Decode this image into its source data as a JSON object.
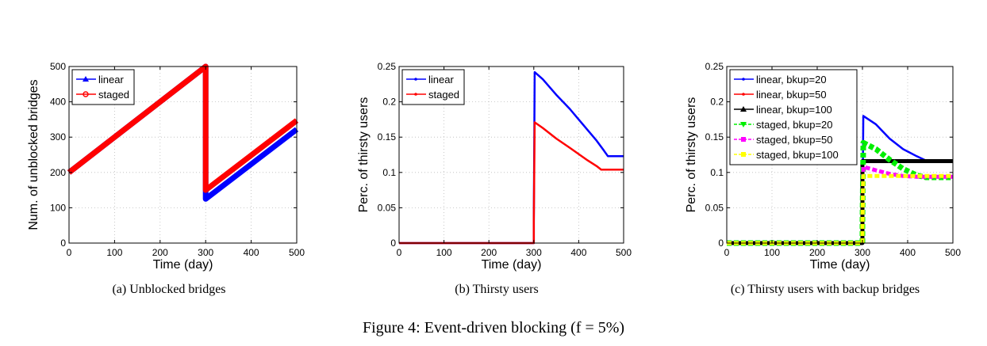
{
  "figure_caption": "Figure 4: Event-driven blocking (f = 5%)",
  "chart_data": [
    {
      "type": "line",
      "caption": "(a) Unblocked bridges",
      "xlabel": "Time (day)",
      "ylabel": "Num. of unblocked bridges",
      "xlim": [
        0,
        500
      ],
      "ylim": [
        0,
        500
      ],
      "xticks": [
        0,
        100,
        200,
        300,
        400,
        500
      ],
      "yticks": [
        0,
        100,
        200,
        300,
        400,
        500
      ],
      "tick_labels_x": [
        "0",
        "100",
        "200",
        "300",
        "400",
        "500"
      ],
      "tick_labels_y": [
        "0",
        "100",
        "200",
        "300",
        "400",
        "500"
      ],
      "grid": true,
      "legend": "top-left",
      "series": [
        {
          "name": "linear",
          "color": "#0000ff",
          "marker": "triangle",
          "lw": 7,
          "dash": "",
          "x": [
            0,
            300,
            300,
            500
          ],
          "y": [
            200,
            500,
            125,
            322
          ]
        },
        {
          "name": "staged",
          "color": "#ff0000",
          "marker": "circle",
          "lw": 7,
          "dash": "",
          "x": [
            0,
            300,
            300,
            500
          ],
          "y": [
            200,
            500,
            150,
            347
          ]
        }
      ],
      "points": [
        {
          "color": "#ff0000",
          "x": 300,
          "y": 368
        }
      ]
    },
    {
      "type": "line",
      "caption": "(b) Thirsty users",
      "xlabel": "Time (day)",
      "ylabel": "Perc. of thirsty users",
      "xlim": [
        0,
        500
      ],
      "ylim": [
        0,
        0.25
      ],
      "xticks": [
        0,
        100,
        200,
        300,
        400,
        500
      ],
      "yticks": [
        0,
        0.05,
        0.1,
        0.15,
        0.2,
        0.25
      ],
      "tick_labels_x": [
        "0",
        "100",
        "200",
        "300",
        "400",
        "500"
      ],
      "tick_labels_y": [
        "0",
        "0.05",
        "0.1",
        "0.15",
        "0.2",
        "0.25"
      ],
      "grid": true,
      "legend": "top-left",
      "series": [
        {
          "name": "linear",
          "color": "#0000ff",
          "marker": "point",
          "lw": 2.5,
          "dash": "",
          "x": [
            0,
            300,
            300,
            302,
            320,
            350,
            380,
            400,
            420,
            440,
            455,
            465,
            500
          ],
          "y": [
            0,
            0,
            0.03,
            0.242,
            0.232,
            0.21,
            0.19,
            0.175,
            0.16,
            0.145,
            0.132,
            0.123,
            0.123
          ]
        },
        {
          "name": "staged",
          "color": "#ff0000",
          "marker": "point",
          "lw": 2.5,
          "dash": "",
          "x": [
            0,
            300,
            300,
            302,
            320,
            350,
            380,
            400,
            420,
            440,
            450,
            500
          ],
          "y": [
            0,
            0,
            0.03,
            0.171,
            0.163,
            0.148,
            0.135,
            0.126,
            0.117,
            0.109,
            0.104,
            0.104
          ]
        }
      ],
      "points": []
    },
    {
      "type": "line",
      "caption": "(c) Thirsty users with backup bridges",
      "xlabel": "Time (day)",
      "ylabel": "Perc. of thirsty users",
      "xlim": [
        0,
        500
      ],
      "ylim": [
        0,
        0.25
      ],
      "xticks": [
        0,
        100,
        200,
        300,
        400,
        500
      ],
      "yticks": [
        0,
        0.05,
        0.1,
        0.15,
        0.2,
        0.25
      ],
      "tick_labels_x": [
        "0",
        "100",
        "200",
        "300",
        "400",
        "500"
      ],
      "tick_labels_y": [
        "0",
        "0.05",
        "0.1",
        "0.15",
        "0.2",
        "0.25"
      ],
      "grid": true,
      "legend": "top-left",
      "series": [
        {
          "name": "linear, bkup=20",
          "color": "#0000ff",
          "marker": "point",
          "lw": 2.5,
          "dash": "",
          "x": [
            0,
            300,
            300,
            302,
            330,
            360,
            390,
            420,
            440,
            500
          ],
          "y": [
            0,
            0,
            0.03,
            0.18,
            0.168,
            0.148,
            0.133,
            0.123,
            0.117,
            0.117
          ]
        },
        {
          "name": "linear, bkup=50",
          "color": "#ff0000",
          "marker": "point",
          "lw": 2.5,
          "dash": "",
          "x": [
            0,
            300,
            300,
            302,
            340,
            380,
            420,
            500
          ],
          "y": [
            0,
            0,
            0.03,
            0.115,
            0.117,
            0.116,
            0.115,
            0.115
          ]
        },
        {
          "name": "linear, bkup=100",
          "color": "#000000",
          "marker": "triangle",
          "lw": 5,
          "dash": "",
          "x": [
            0,
            300,
            300,
            500
          ],
          "y": [
            0,
            0,
            0.116,
            0.116
          ]
        },
        {
          "name": "staged, bkup=20",
          "color": "#00ee00",
          "marker": "triangle-down",
          "lw": 7,
          "dash": "6,3",
          "x": [
            0,
            300,
            300,
            302,
            330,
            360,
            390,
            420,
            440,
            500
          ],
          "y": [
            0,
            0,
            0.03,
            0.142,
            0.133,
            0.118,
            0.105,
            0.096,
            0.093,
            0.093
          ]
        },
        {
          "name": "staged, bkup=50",
          "color": "#ff00ff",
          "marker": "square",
          "lw": 5,
          "dash": "6,3",
          "x": [
            0,
            300,
            300,
            302,
            330,
            360,
            390,
            420,
            440,
            500
          ],
          "y": [
            0,
            0,
            0.03,
            0.108,
            0.103,
            0.098,
            0.095,
            0.094,
            0.094,
            0.094
          ]
        },
        {
          "name": "staged, bkup=100",
          "color": "#ffff00",
          "marker": "square",
          "lw": 5,
          "dash": "6,3",
          "x": [
            0,
            300,
            300,
            302,
            500
          ],
          "y": [
            0,
            0,
            0.03,
            0.095,
            0.095
          ]
        }
      ],
      "points": []
    }
  ]
}
